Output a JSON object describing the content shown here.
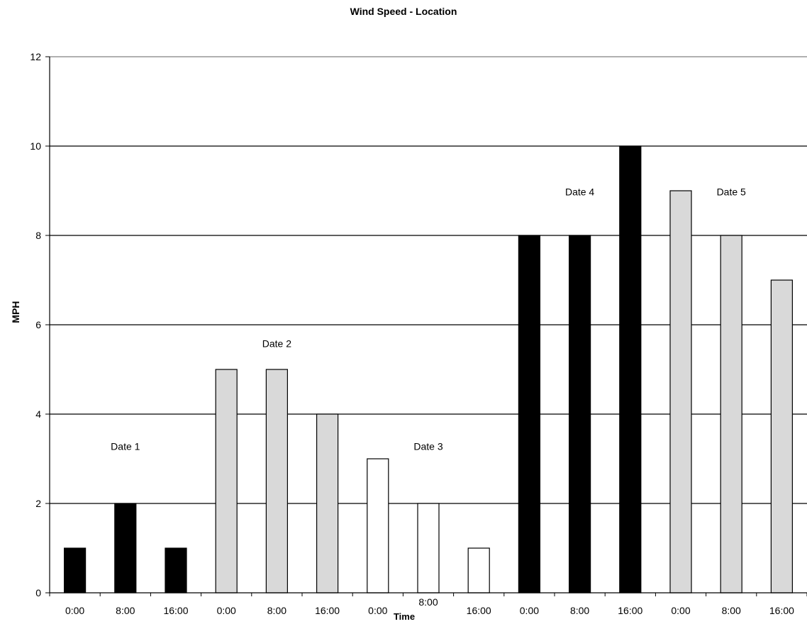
{
  "chart_data": {
    "type": "bar",
    "title": "Wind Speed - Location",
    "xlabel": "Time",
    "ylabel": "MPH",
    "ylim": [
      0,
      12
    ],
    "yticks": [
      0,
      2,
      4,
      6,
      8,
      10,
      12
    ],
    "grid": true,
    "categories": [
      "0:00",
      "8:00",
      "16:00",
      "0:00",
      "8:00",
      "16:00",
      "0:00",
      "8:00",
      "16:00",
      "0:00",
      "8:00",
      "16:00",
      "0:00",
      "8:00",
      "16:00"
    ],
    "values": [
      1,
      2,
      1,
      5,
      5,
      4,
      3,
      2,
      1,
      8,
      8,
      10,
      9,
      8,
      7
    ],
    "groups": [
      {
        "label": "Date 1",
        "start": 0,
        "end": 2,
        "color": "#000000"
      },
      {
        "label": "Date 2",
        "start": 3,
        "end": 5,
        "color": "#d9d9d9"
      },
      {
        "label": "Date 3",
        "start": 6,
        "end": 8,
        "color": "#ffffff"
      },
      {
        "label": "Date 4",
        "start": 9,
        "end": 11,
        "color": "#000000"
      },
      {
        "label": "Date 5",
        "start": 12,
        "end": 14,
        "color": "#d9d9d9"
      }
    ],
    "annotations": [
      {
        "text": "Date 1",
        "x_index": 1,
        "y": 3.2
      },
      {
        "text": "Date 2",
        "x_index": 4,
        "y": 5.5
      },
      {
        "text": "Date 3",
        "x_index": 7,
        "y": 3.2
      },
      {
        "text": "Date 4",
        "x_index": 10,
        "y": 8.9
      },
      {
        "text": "Date 5",
        "x_index": 13,
        "y": 8.9
      }
    ]
  }
}
